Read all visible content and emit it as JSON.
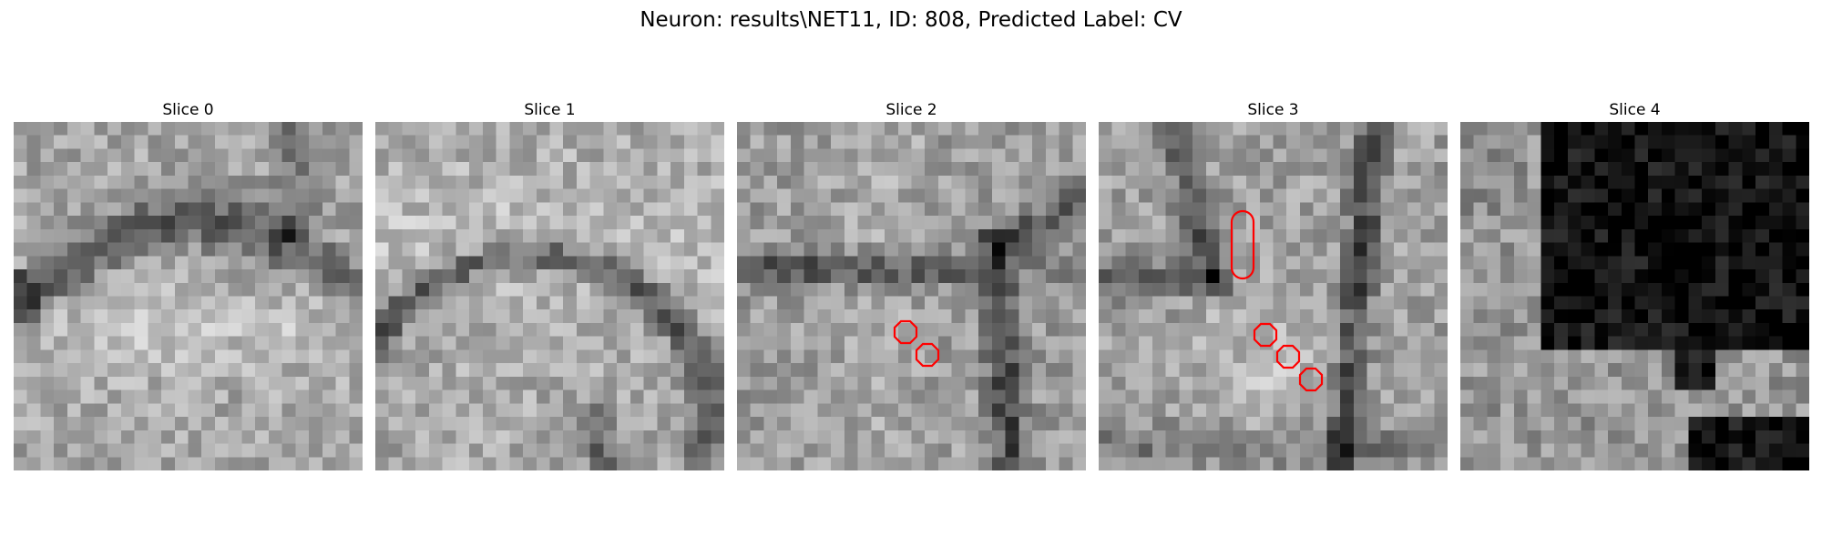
{
  "figure": {
    "title": "Neuron: results\\NET11, ID: 808, Predicted Label: CV"
  },
  "slices": [
    {
      "label": "Slice 0",
      "texture": "mottled gray with dark band",
      "annotations": []
    },
    {
      "label": "Slice 1",
      "texture": "mottled gray with dark arc",
      "annotations": []
    },
    {
      "label": "Slice 2",
      "texture": "gray with dark branching membranes",
      "annotations": [
        "red-octagon",
        "red-octagon"
      ]
    },
    {
      "label": "Slice 3",
      "texture": "gray with dark membranes",
      "annotations": [
        "red-capsule",
        "red-octagon",
        "red-octagon",
        "red-octagon"
      ]
    },
    {
      "label": "Slice 4",
      "texture": "mostly black region",
      "annotations": []
    }
  ],
  "colors": {
    "annotation": "#ff0000",
    "background": "#ffffff"
  }
}
